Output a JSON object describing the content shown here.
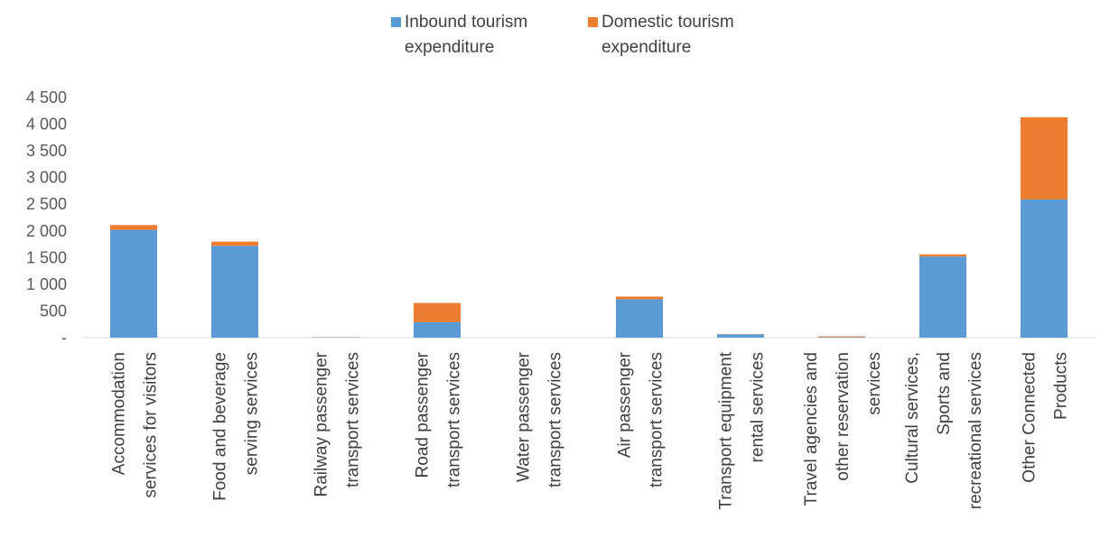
{
  "chart_data": {
    "type": "bar",
    "stacked": true,
    "title": "",
    "xlabel": "",
    "ylabel": "",
    "ylim": [
      0,
      4500
    ],
    "yticks": [
      0,
      500,
      1000,
      1500,
      2000,
      2500,
      3000,
      3500,
      4000,
      4500
    ],
    "ytick_labels": [
      "-",
      "500",
      "1 000",
      "1 500",
      "2 000",
      "2 500",
      "3 000",
      "3 500",
      "4 000",
      "4 500"
    ],
    "grid": false,
    "legend_position": "top-center",
    "categories": [
      [
        "Accommodation",
        "services for visitors"
      ],
      [
        "Food and beverage",
        "serving services"
      ],
      [
        "Railway passenger",
        "transport services"
      ],
      [
        "Road passenger",
        "transport services"
      ],
      [
        "Water passenger",
        "transport services"
      ],
      [
        "Air passenger",
        "transport services"
      ],
      [
        "Transport equipment",
        "rental services"
      ],
      [
        "Travel agencies and",
        "other reservation",
        "services"
      ],
      [
        "Cultural services,",
        "Sports and",
        "recreational services"
      ],
      [
        "Other Connected",
        "Products"
      ]
    ],
    "series": [
      {
        "name": "Inbound tourism expenditure",
        "legend_lines": [
          "Inbound tourism",
          "expenditure"
        ],
        "color": "#5B9BD5",
        "values": [
          2020,
          1720,
          5,
          290,
          0,
          720,
          60,
          10,
          1520,
          2590
        ]
      },
      {
        "name": "Domestic tourism expenditure",
        "legend_lines": [
          "Domestic tourism",
          "expenditure"
        ],
        "color": "#ED7D31",
        "values": [
          90,
          80,
          5,
          360,
          0,
          50,
          5,
          15,
          40,
          1540
        ]
      }
    ]
  }
}
